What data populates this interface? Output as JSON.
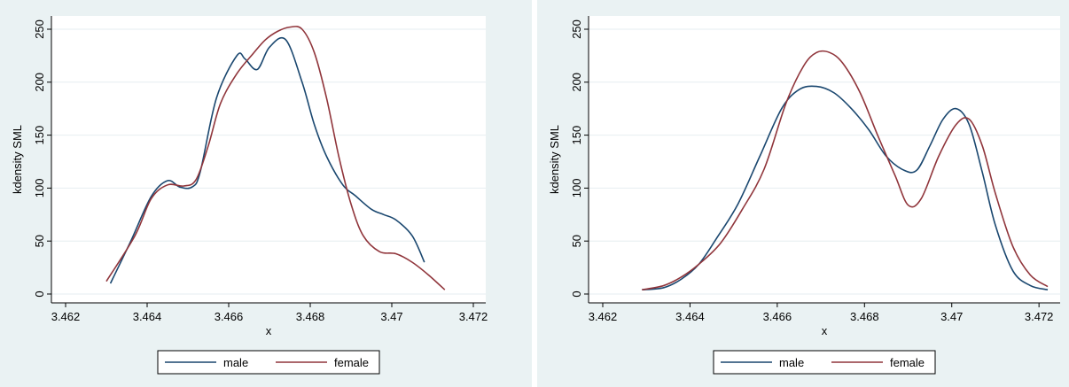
{
  "colors": {
    "outer_bg": "#eaf2f3",
    "plot_bg": "#ffffff",
    "grid": "#e6eef0",
    "male": "#1a476f",
    "female": "#90353b",
    "axis": "#000000"
  },
  "chart_data": [
    {
      "type": "line",
      "title": "",
      "xlabel": "x",
      "ylabel": "kdensity SML",
      "xlim": [
        3.462,
        3.472
      ],
      "ylim": [
        0,
        250
      ],
      "xticks": [
        3.462,
        3.464,
        3.466,
        3.468,
        3.47,
        3.472
      ],
      "xtick_labels": [
        "3.462",
        "3.464",
        "3.466",
        "3.468",
        "3.47",
        "3.472"
      ],
      "yticks": [
        0,
        50,
        100,
        150,
        200,
        250
      ],
      "ytick_labels": [
        "0",
        "50",
        "100",
        "150",
        "200",
        "250"
      ],
      "grid": true,
      "legend_position": "bottom",
      "series": [
        {
          "name": "male",
          "color": "#1a476f",
          "x": [
            3.4631,
            3.4636,
            3.4641,
            3.4645,
            3.4648,
            3.4651,
            3.4653,
            3.4657,
            3.4662,
            3.4664,
            3.4667,
            3.467,
            3.4674,
            3.4678,
            3.4681,
            3.4684,
            3.4688,
            3.4691,
            3.4695,
            3.4698,
            3.4701,
            3.4705,
            3.4708
          ],
          "y": [
            10,
            50,
            92,
            107,
            101,
            101,
            115,
            185,
            225,
            222,
            212,
            233,
            240,
            200,
            160,
            130,
            103,
            93,
            80,
            75,
            70,
            55,
            30
          ]
        },
        {
          "name": "female",
          "color": "#90353b",
          "x": [
            3.463,
            3.4637,
            3.4641,
            3.4645,
            3.4649,
            3.4652,
            3.4655,
            3.4658,
            3.4662,
            3.4666,
            3.4669,
            3.4672,
            3.4675,
            3.4678,
            3.4681,
            3.4684,
            3.4687,
            3.469,
            3.4693,
            3.4697,
            3.4701,
            3.4705,
            3.4709,
            3.4713
          ],
          "y": [
            12,
            55,
            90,
            103,
            102,
            108,
            140,
            180,
            208,
            227,
            240,
            248,
            252,
            250,
            228,
            185,
            130,
            85,
            55,
            40,
            38,
            30,
            18,
            4
          ]
        }
      ]
    },
    {
      "type": "line",
      "title": "",
      "xlabel": "x",
      "ylabel": "kdensity SML",
      "xlim": [
        3.462,
        3.4722
      ],
      "ylim": [
        0,
        250
      ],
      "xticks": [
        3.462,
        3.464,
        3.466,
        3.468,
        3.47,
        3.472
      ],
      "xtick_labels": [
        "3.462",
        "3.464",
        "3.466",
        "3.468",
        "3.47",
        "3.472"
      ],
      "yticks": [
        0,
        50,
        100,
        150,
        200,
        250
      ],
      "ytick_labels": [
        "0",
        "50",
        "100",
        "150",
        "200",
        "250"
      ],
      "grid": true,
      "legend_position": "bottom",
      "series": [
        {
          "name": "male",
          "color": "#1a476f",
          "x": [
            3.4629,
            3.4634,
            3.4638,
            3.4642,
            3.4646,
            3.4651,
            3.4656,
            3.4661,
            3.4665,
            3.4669,
            3.4673,
            3.4677,
            3.4681,
            3.4685,
            3.4689,
            3.4692,
            3.4695,
            3.4698,
            3.4701,
            3.4704,
            3.4707,
            3.471,
            3.4714,
            3.4718,
            3.4722
          ],
          "y": [
            4,
            6,
            14,
            28,
            52,
            85,
            130,
            175,
            193,
            196,
            190,
            175,
            155,
            130,
            117,
            117,
            140,
            165,
            175,
            160,
            115,
            65,
            22,
            8,
            4
          ]
        },
        {
          "name": "female",
          "color": "#90353b",
          "x": [
            3.4629,
            3.4634,
            3.4638,
            3.4642,
            3.4647,
            3.4652,
            3.4657,
            3.4662,
            3.4666,
            3.4669,
            3.4672,
            3.4675,
            3.4679,
            3.4683,
            3.4687,
            3.469,
            3.4693,
            3.4697,
            3.4701,
            3.4704,
            3.4707,
            3.471,
            3.4714,
            3.4718,
            3.4722
          ],
          "y": [
            4,
            8,
            16,
            28,
            48,
            80,
            118,
            180,
            215,
            228,
            228,
            218,
            190,
            150,
            112,
            84,
            90,
            130,
            160,
            165,
            140,
            95,
            45,
            18,
            7
          ]
        }
      ]
    }
  ]
}
